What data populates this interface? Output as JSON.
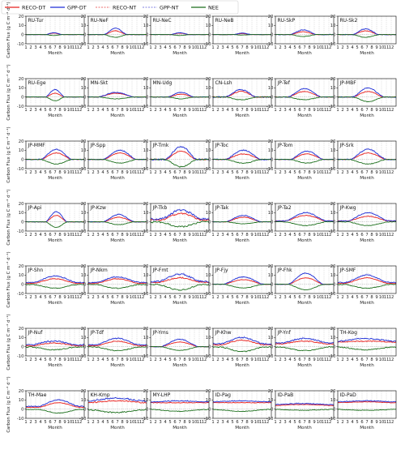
{
  "chart_data": {
    "type": "line",
    "legend": {
      "placement": "top-center",
      "entries": [
        {
          "name": "RECO-DT",
          "color": "#e8221f",
          "style": "solid"
        },
        {
          "name": "GPP-DT",
          "color": "#1f2fd6",
          "style": "solid"
        },
        {
          "name": "RECO-NT",
          "color": "#f08a8a",
          "style": "dashed"
        },
        {
          "name": "GPP-NT",
          "color": "#9a9ae6",
          "style": "dashed"
        },
        {
          "name": "NEE",
          "color": "#1a6e1a",
          "style": "solid"
        }
      ]
    },
    "ylabel": "Carbon Flux (g C m⁻² d⁻¹)",
    "xlabel": "Month",
    "ylim": [
      -10,
      20
    ],
    "yticks": [
      -10,
      0,
      10,
      20
    ],
    "xticks": [
      "1",
      "2",
      "3",
      "4",
      "5",
      "6",
      "7",
      "8",
      "9",
      "10",
      "11",
      "12"
    ],
    "grid": "vertical dashed at months",
    "panels": [
      {
        "site": "RU-Tur",
        "gpp_peak": 2,
        "reco_peak": 1.5,
        "nee_min": -1,
        "start": 5.0,
        "end": 8.5,
        "base_gpp": 0,
        "base_reco": 0,
        "noise": 0.3
      },
      {
        "site": "RU-NeF",
        "gpp_peak": 7,
        "reco_peak": 4,
        "nee_min": -3,
        "start": 4.2,
        "end": 9.0,
        "base_gpp": 0,
        "base_reco": 0,
        "noise": 0.5
      },
      {
        "site": "RU-NeC",
        "gpp_peak": 2,
        "reco_peak": 1.5,
        "nee_min": -1,
        "start": 5.0,
        "end": 9.0,
        "base_gpp": 0,
        "base_reco": 0,
        "noise": 0.3
      },
      {
        "site": "RU-NeB",
        "gpp_peak": 1.5,
        "reco_peak": 1,
        "nee_min": -0.5,
        "start": 5.0,
        "end": 9.0,
        "base_gpp": 0,
        "base_reco": 0,
        "noise": 0.3
      },
      {
        "site": "RU-SkP",
        "gpp_peak": 5,
        "reco_peak": 3,
        "nee_min": -2,
        "start": 4.0,
        "end": 9.5,
        "base_gpp": 0,
        "base_reco": 0,
        "noise": 0.6
      },
      {
        "site": "RU-Sk2",
        "gpp_peak": 6,
        "reco_peak": 4,
        "nee_min": -3,
        "start": 4.0,
        "end": 9.5,
        "base_gpp": 0,
        "base_reco": 0,
        "noise": 0.6
      },
      {
        "site": "RU-Ege",
        "gpp_peak": 8,
        "reco_peak": 4,
        "nee_min": -4,
        "start": 5.0,
        "end": 9.0,
        "base_gpp": 0,
        "base_reco": 0,
        "noise": 0.4
      },
      {
        "site": "MN-Skt",
        "gpp_peak": 5,
        "reco_peak": 4,
        "nee_min": -2,
        "start": 3.0,
        "end": 10.5,
        "base_gpp": 0,
        "base_reco": 0,
        "noise": 0.6
      },
      {
        "site": "MN-Udg",
        "gpp_peak": 5,
        "reco_peak": 3,
        "nee_min": -2,
        "start": 4.5,
        "end": 10.0,
        "base_gpp": 0,
        "base_reco": 0,
        "noise": 0.6
      },
      {
        "site": "CN-Lsh",
        "gpp_peak": 8,
        "reco_peak": 6,
        "nee_min": -3,
        "start": 3.5,
        "end": 10.0,
        "base_gpp": 0,
        "base_reco": 0,
        "noise": 1.2
      },
      {
        "site": "JP-Tef",
        "gpp_peak": 9,
        "reco_peak": 6,
        "nee_min": -3,
        "start": 3.5,
        "end": 10.5,
        "base_gpp": 0,
        "base_reco": 0,
        "noise": 0.7
      },
      {
        "site": "JP-MBF",
        "gpp_peak": 10,
        "reco_peak": 6,
        "nee_min": -5,
        "start": 4.0,
        "end": 10.5,
        "base_gpp": 0,
        "base_reco": 0,
        "noise": 0.8
      },
      {
        "site": "JP-MMF",
        "gpp_peak": 11,
        "reco_peak": 7,
        "nee_min": -5,
        "start": 4.0,
        "end": 10.5,
        "base_gpp": 0,
        "base_reco": 0,
        "noise": 0.8
      },
      {
        "site": "JP-Spp",
        "gpp_peak": 10,
        "reco_peak": 7,
        "nee_min": -4,
        "start": 4.0,
        "end": 11.0,
        "base_gpp": 0,
        "base_reco": 0,
        "noise": 0.8
      },
      {
        "site": "JP-Tmk",
        "gpp_peak": 14,
        "reco_peak": 9,
        "nee_min": -8,
        "start": 4.0,
        "end": 10.5,
        "base_gpp": 0,
        "base_reco": 0,
        "noise": 1.4
      },
      {
        "site": "JP-Toc",
        "gpp_peak": 10,
        "reco_peak": 6,
        "nee_min": -4,
        "start": 3.5,
        "end": 11.0,
        "base_gpp": 0,
        "base_reco": 0,
        "noise": 1.0
      },
      {
        "site": "JP-Tom",
        "gpp_peak": 9,
        "reco_peak": 6,
        "nee_min": -4,
        "start": 4.0,
        "end": 11.0,
        "base_gpp": 0,
        "base_reco": 0,
        "noise": 0.7
      },
      {
        "site": "JP-Srk",
        "gpp_peak": 11,
        "reco_peak": 7,
        "nee_min": -5,
        "start": 3.5,
        "end": 11.0,
        "base_gpp": 0,
        "base_reco": 0,
        "noise": 0.9
      },
      {
        "site": "JP-Api",
        "gpp_peak": 11,
        "reco_peak": 7,
        "nee_min": -6,
        "start": 5.0,
        "end": 9.5,
        "base_gpp": 0,
        "base_reco": 0,
        "noise": 0.6
      },
      {
        "site": "JP-Kzw",
        "gpp_peak": 8,
        "reco_peak": 5,
        "nee_min": -3,
        "start": 4.0,
        "end": 10.5,
        "base_gpp": 0,
        "base_reco": 0,
        "noise": 0.7
      },
      {
        "site": "JP-Tkb",
        "gpp_peak": 13,
        "reco_peak": 9,
        "nee_min": -5,
        "start": 3.0,
        "end": 11.5,
        "base_gpp": 3,
        "base_reco": 2,
        "noise": 2.2
      },
      {
        "site": "JP-Tak",
        "gpp_peak": 7,
        "reco_peak": 5,
        "nee_min": -2,
        "start": 3.5,
        "end": 11.0,
        "base_gpp": 0,
        "base_reco": 0,
        "noise": 0.6
      },
      {
        "site": "JP-Ta2",
        "gpp_peak": 10,
        "reco_peak": 7,
        "nee_min": -4,
        "start": 3.0,
        "end": 11.5,
        "base_gpp": 1,
        "base_reco": 1,
        "noise": 0.8
      },
      {
        "site": "JP-Kwg",
        "gpp_peak": 10,
        "reco_peak": 6,
        "nee_min": -4,
        "start": 3.0,
        "end": 11.5,
        "base_gpp": 1,
        "base_reco": 1,
        "noise": 0.8
      },
      {
        "site": "JP-Shn",
        "gpp_peak": 9,
        "reco_peak": 6,
        "nee_min": -4,
        "start": 2.5,
        "end": 11.5,
        "base_gpp": 2,
        "base_reco": 1,
        "noise": 1.0
      },
      {
        "site": "JP-Nkm",
        "gpp_peak": 8,
        "reco_peak": 6,
        "nee_min": -4,
        "start": 2.5,
        "end": 11.5,
        "base_gpp": 2,
        "base_reco": 1,
        "noise": 1.0
      },
      {
        "site": "JP-Fmt",
        "gpp_peak": 11,
        "reco_peak": 7,
        "nee_min": -6,
        "start": 2.5,
        "end": 11.5,
        "base_gpp": 3,
        "base_reco": 2,
        "noise": 1.6
      },
      {
        "site": "JP-Fjy",
        "gpp_peak": 8,
        "reco_peak": 5,
        "nee_min": -4,
        "start": 3.0,
        "end": 11.5,
        "base_gpp": 0,
        "base_reco": 0,
        "noise": 0.6
      },
      {
        "site": "JP-Fhk",
        "gpp_peak": 12,
        "reco_peak": 7,
        "nee_min": -6,
        "start": 3.5,
        "end": 11.0,
        "base_gpp": 0,
        "base_reco": 0,
        "noise": 0.6
      },
      {
        "site": "JP-SMF",
        "gpp_peak": 10,
        "reco_peak": 7,
        "nee_min": -4,
        "start": 2.5,
        "end": 11.5,
        "base_gpp": 2,
        "base_reco": 1,
        "noise": 1.0
      },
      {
        "site": "JP-Nuf",
        "gpp_peak": 6,
        "reco_peak": 4,
        "nee_min": -3,
        "start": 2.0,
        "end": 11.5,
        "base_gpp": 2,
        "base_reco": 1,
        "noise": 1.4
      },
      {
        "site": "JP-Tdf",
        "gpp_peak": 9,
        "reco_peak": 6,
        "nee_min": -4,
        "start": 2.5,
        "end": 11.5,
        "base_gpp": 2,
        "base_reco": 1,
        "noise": 1.0
      },
      {
        "site": "JP-Yms",
        "gpp_peak": 8,
        "reco_peak": 5,
        "nee_min": -4,
        "start": 3.0,
        "end": 11.0,
        "base_gpp": 0,
        "base_reco": 0,
        "noise": 0.6
      },
      {
        "site": "JP-Khw",
        "gpp_peak": 10,
        "reco_peak": 7,
        "nee_min": -5,
        "start": 2.5,
        "end": 11.5,
        "base_gpp": 3,
        "base_reco": 2,
        "noise": 1.4
      },
      {
        "site": "JP-Ynf",
        "gpp_peak": 9,
        "reco_peak": 6,
        "nee_min": -4,
        "start": 2.0,
        "end": 12.0,
        "base_gpp": 4,
        "base_reco": 3,
        "noise": 1.2
      },
      {
        "site": "TH-Kog",
        "gpp_peak": 9,
        "reco_peak": 6,
        "nee_min": -3,
        "start": 1.0,
        "end": 12.5,
        "base_gpp": 6,
        "base_reco": 5,
        "noise": 1.2
      },
      {
        "site": "TH-Mae",
        "gpp_peak": 10,
        "reco_peak": 7,
        "nee_min": -4,
        "start": 3.5,
        "end": 12.0,
        "base_gpp": 3,
        "base_reco": 2,
        "noise": 0.8
      },
      {
        "site": "KH-Kmp",
        "gpp_peak": 12,
        "reco_peak": 9,
        "nee_min": -3,
        "start": 1.0,
        "end": 12.5,
        "base_gpp": 9,
        "base_reco": 7,
        "noise": 1.6
      },
      {
        "site": "MY-LHP",
        "gpp_peak": 9,
        "reco_peak": 7,
        "nee_min": -2,
        "start": 1.0,
        "end": 12.5,
        "base_gpp": 8,
        "base_reco": 7,
        "noise": 1.0
      },
      {
        "site": "ID-Pag",
        "gpp_peak": 9,
        "reco_peak": 7,
        "nee_min": -2,
        "start": 1.0,
        "end": 12.5,
        "base_gpp": 8,
        "base_reco": 7,
        "noise": 0.8
      },
      {
        "site": "ID-PaB",
        "gpp_peak": 6,
        "reco_peak": 5,
        "nee_min": -1,
        "start": 1.0,
        "end": 12.5,
        "base_gpp": 5,
        "base_reco": 4,
        "noise": 0.8
      },
      {
        "site": "ID-PaD",
        "gpp_peak": 9,
        "reco_peak": 8,
        "nee_min": -1,
        "start": 1.0,
        "end": 12.5,
        "base_gpp": 8,
        "base_reco": 7,
        "noise": 0.8
      }
    ]
  }
}
